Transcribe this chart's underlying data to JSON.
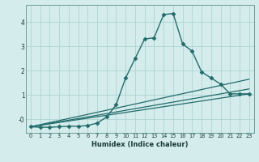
{
  "xlabel": "Humidex (Indice chaleur)",
  "ylabel": "",
  "background_color": "#d4ecec",
  "line_color": "#236b6b",
  "grid_color": "#aed4d4",
  "xlim": [
    -0.5,
    23.5
  ],
  "ylim": [
    -0.55,
    4.7
  ],
  "yticks": [
    0,
    1,
    2,
    3,
    4
  ],
  "ytick_labels": [
    "-0",
    "1",
    "2",
    "3",
    "4"
  ],
  "xticks": [
    0,
    1,
    2,
    3,
    4,
    5,
    6,
    7,
    8,
    9,
    10,
    11,
    12,
    13,
    14,
    15,
    16,
    17,
    18,
    19,
    20,
    21,
    22,
    23
  ],
  "series": [
    {
      "x": [
        0,
        1,
        2,
        3,
        4,
        5,
        6,
        7,
        8,
        9,
        10,
        11,
        12,
        13,
        14,
        15,
        16,
        17,
        18,
        19,
        20,
        21,
        22,
        23
      ],
      "y": [
        -0.3,
        -0.32,
        -0.32,
        -0.3,
        -0.28,
        -0.28,
        -0.25,
        -0.15,
        0.1,
        0.6,
        1.7,
        2.5,
        3.3,
        3.35,
        4.3,
        4.35,
        3.1,
        2.8,
        1.95,
        1.7,
        1.45,
        1.05,
        1.05,
        1.05
      ],
      "marker": "D",
      "markersize": 2.5,
      "linewidth": 1.0,
      "has_marker": true
    },
    {
      "x": [
        0,
        23
      ],
      "y": [
        -0.3,
        1.65
      ],
      "marker": null,
      "linewidth": 0.9,
      "has_marker": false
    },
    {
      "x": [
        0,
        23
      ],
      "y": [
        -0.3,
        1.05
      ],
      "marker": null,
      "linewidth": 0.9,
      "has_marker": false
    },
    {
      "x": [
        0,
        23
      ],
      "y": [
        -0.3,
        1.25
      ],
      "marker": null,
      "linewidth": 0.9,
      "has_marker": false
    }
  ]
}
